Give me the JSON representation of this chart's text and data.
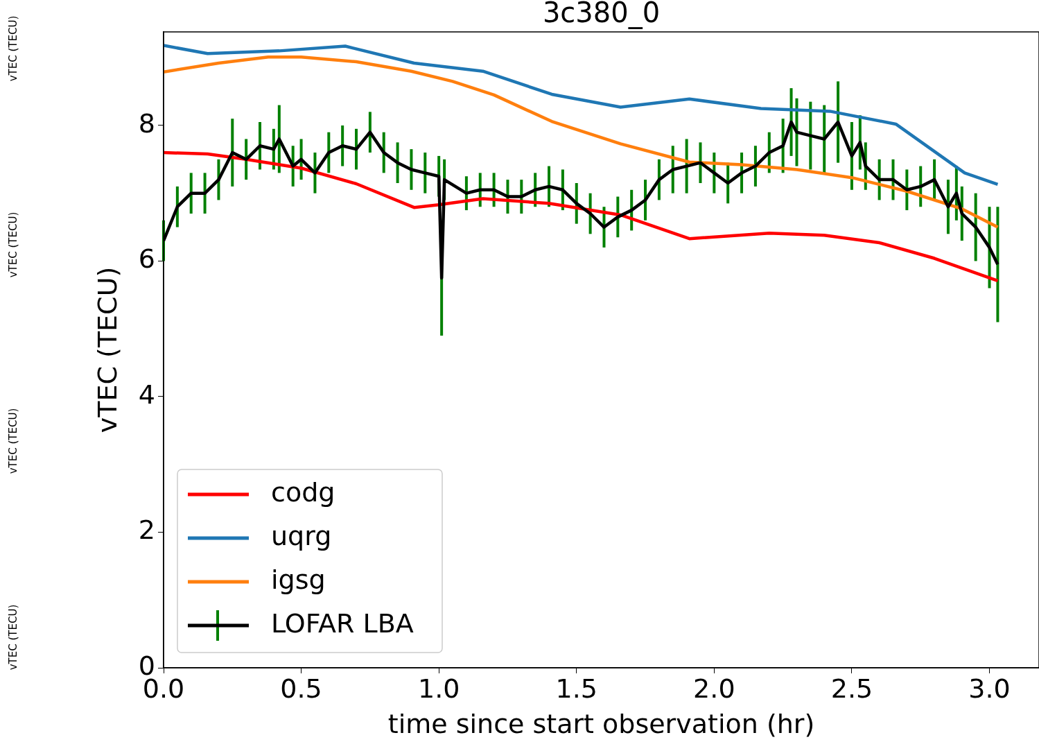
{
  "chart_data": {
    "type": "line",
    "title": "3c380_0",
    "xlabel": "time since start observation (hr)",
    "ylabel": "vTEC (TECU)",
    "annotations": [
      "vTEC (TECU)",
      "vTEC (TECU)",
      "vTEC (TECU)",
      "vTEC (TECU)"
    ],
    "xlim": [
      0,
      3.18
    ],
    "ylim": [
      0,
      9.38
    ],
    "xticks": [
      {
        "value": 0,
        "label": "0.0"
      },
      {
        "value": 0.5,
        "label": "0.5"
      },
      {
        "value": 1,
        "label": "1.0"
      },
      {
        "value": 1.5,
        "label": "1.5"
      },
      {
        "value": 2,
        "label": "2.0"
      },
      {
        "value": 2.5,
        "label": "2.5"
      },
      {
        "value": 3,
        "label": "3.0"
      }
    ],
    "yticks": [
      0,
      2,
      4,
      6,
      8
    ],
    "grid": false,
    "legend": "bottom left",
    "marker": "none",
    "line_style": "solid",
    "series": [
      {
        "name": "codg",
        "color": "#ff0000",
        "x": [
          0,
          0.16,
          0.3,
          0.5,
          0.7,
          0.91,
          1.0,
          1.16,
          1.4,
          1.66,
          1.91,
          2.2,
          2.4,
          2.6,
          2.8,
          3.03
        ],
        "values": [
          7.6,
          7.58,
          7.5,
          7.37,
          7.14,
          6.79,
          6.83,
          6.92,
          6.85,
          6.68,
          6.33,
          6.41,
          6.38,
          6.27,
          6.04,
          5.71
        ]
      },
      {
        "name": "uqrg",
        "color": "#1f77b4",
        "x": [
          0,
          0.16,
          0.42,
          0.66,
          0.91,
          1.16,
          1.41,
          1.66,
          1.91,
          2.17,
          2.42,
          2.66,
          2.91,
          3.03
        ],
        "values": [
          9.18,
          9.06,
          9.1,
          9.17,
          8.92,
          8.8,
          8.46,
          8.27,
          8.39,
          8.25,
          8.21,
          8.02,
          7.3,
          7.13
        ]
      },
      {
        "name": "igsg",
        "color": "#ff7f0e",
        "x": [
          0,
          0.2,
          0.38,
          0.5,
          0.7,
          0.9,
          1.05,
          1.2,
          1.41,
          1.66,
          1.91,
          2.1,
          2.3,
          2.5,
          2.7,
          2.9,
          3.03
        ],
        "values": [
          8.79,
          8.92,
          9.01,
          9.01,
          8.94,
          8.8,
          8.65,
          8.45,
          8.06,
          7.73,
          7.46,
          7.42,
          7.35,
          7.23,
          7.03,
          6.77,
          6.5
        ]
      },
      {
        "name": "LOFAR LBA",
        "color": "#000000",
        "x": [
          0,
          0.05,
          0.1,
          0.15,
          0.2,
          0.25,
          0.3,
          0.35,
          0.4,
          0.42,
          0.47,
          0.5,
          0.55,
          0.6,
          0.65,
          0.7,
          0.75,
          0.8,
          0.85,
          0.9,
          0.95,
          1.0,
          1.01,
          1.02,
          1.1,
          1.15,
          1.2,
          1.25,
          1.3,
          1.35,
          1.4,
          1.45,
          1.5,
          1.55,
          1.6,
          1.65,
          1.7,
          1.75,
          1.8,
          1.85,
          1.9,
          1.95,
          2.0,
          2.05,
          2.1,
          2.15,
          2.2,
          2.25,
          2.28,
          2.3,
          2.35,
          2.4,
          2.45,
          2.5,
          2.53,
          2.55,
          2.6,
          2.65,
          2.7,
          2.75,
          2.8,
          2.85,
          2.88,
          2.9,
          2.95,
          3.0,
          3.03
        ],
        "values": [
          6.3,
          6.8,
          7.0,
          7.0,
          7.2,
          7.6,
          7.5,
          7.7,
          7.65,
          7.8,
          7.4,
          7.5,
          7.3,
          7.6,
          7.7,
          7.65,
          7.9,
          7.6,
          7.45,
          7.35,
          7.3,
          7.25,
          5.75,
          7.2,
          7.0,
          7.05,
          7.05,
          6.95,
          6.95,
          7.05,
          7.1,
          7.05,
          6.85,
          6.7,
          6.5,
          6.65,
          6.75,
          6.9,
          7.2,
          7.35,
          7.4,
          7.45,
          7.3,
          7.15,
          7.3,
          7.4,
          7.6,
          7.7,
          8.05,
          7.9,
          7.85,
          7.8,
          8.05,
          7.55,
          7.75,
          7.4,
          7.2,
          7.2,
          7.05,
          7.1,
          7.2,
          6.8,
          7.0,
          6.7,
          6.5,
          6.2,
          5.95
        ],
        "errors": [
          0.3,
          0.3,
          0.3,
          0.3,
          0.3,
          0.5,
          0.3,
          0.35,
          0.3,
          0.5,
          0.3,
          0.3,
          0.3,
          0.3,
          0.3,
          0.3,
          0.3,
          0.3,
          0.3,
          0.3,
          0.3,
          0.3,
          0.85,
          0.3,
          0.25,
          0.25,
          0.25,
          0.25,
          0.25,
          0.25,
          0.3,
          0.3,
          0.3,
          0.3,
          0.3,
          0.3,
          0.3,
          0.3,
          0.3,
          0.35,
          0.4,
          0.3,
          0.3,
          0.3,
          0.3,
          0.3,
          0.3,
          0.4,
          0.5,
          0.5,
          0.5,
          0.5,
          0.6,
          0.5,
          0.4,
          0.35,
          0.3,
          0.3,
          0.3,
          0.3,
          0.3,
          0.4,
          0.4,
          0.4,
          0.5,
          0.6,
          0.85
        ]
      }
    ]
  }
}
